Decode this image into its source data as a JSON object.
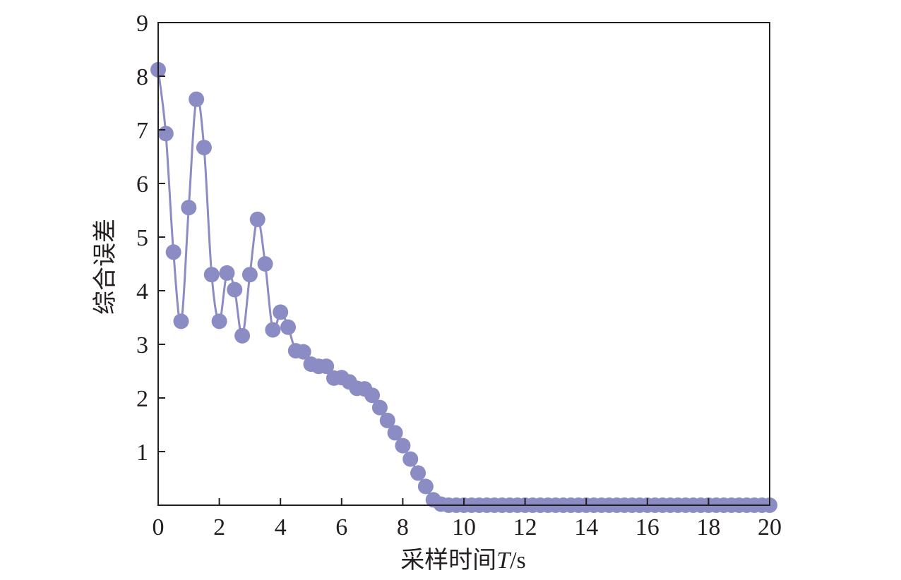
{
  "chart_data": {
    "type": "line",
    "title": "",
    "xlabel_text": "采样时间",
    "xlabel_var": "T",
    "xlabel_unit": "/s",
    "ylabel": "综合误差",
    "xlim": [
      0,
      20
    ],
    "ylim": [
      0,
      9
    ],
    "xticks": [
      0,
      2,
      4,
      6,
      8,
      10,
      12,
      14,
      16,
      18,
      20
    ],
    "yticks": [
      1,
      2,
      3,
      4,
      5,
      6,
      7,
      8,
      9
    ],
    "grid": false,
    "legend": "none",
    "colors": {
      "series": "#8c8cc4",
      "axis": "#231f20"
    },
    "series": [
      {
        "marker": "circle",
        "x": [
          0,
          0.25,
          0.5,
          0.75,
          1,
          1.25,
          1.5,
          1.75,
          2,
          2.25,
          2.5,
          2.75,
          3,
          3.25,
          3.5,
          3.75,
          4,
          4.25,
          4.5,
          4.75,
          5,
          5.25,
          5.5,
          5.75,
          6,
          6.25,
          6.5,
          6.75,
          7,
          7.25,
          7.5,
          7.75,
          8,
          8.25,
          8.5,
          8.75,
          9,
          9.25,
          9.5,
          9.75,
          10,
          10.25,
          10.5,
          10.75,
          11,
          11.25,
          11.5,
          11.75,
          12,
          12.25,
          12.5,
          12.75,
          13,
          13.25,
          13.5,
          13.75,
          14,
          14.25,
          14.5,
          14.75,
          15,
          15.25,
          15.5,
          15.75,
          16,
          16.25,
          16.5,
          16.75,
          17,
          17.25,
          17.5,
          17.75,
          18,
          18.25,
          18.5,
          18.75,
          19,
          19.25,
          19.5,
          19.75,
          20
        ],
        "y": [
          8.12,
          6.93,
          4.72,
          3.43,
          5.55,
          7.57,
          6.67,
          4.3,
          3.43,
          4.33,
          4.02,
          3.16,
          4.3,
          5.33,
          4.5,
          3.27,
          3.6,
          3.32,
          2.88,
          2.86,
          2.63,
          2.59,
          2.59,
          2.37,
          2.38,
          2.3,
          2.18,
          2.17,
          2.05,
          1.82,
          1.58,
          1.35,
          1.11,
          0.86,
          0.6,
          0.35,
          0.1,
          0.02,
          0,
          0,
          0,
          0,
          0,
          0,
          0,
          0,
          0,
          0,
          0,
          0,
          0,
          0,
          0,
          0,
          0,
          0,
          0,
          0,
          0,
          0,
          0,
          0,
          0,
          0,
          0,
          0,
          0,
          0,
          0,
          0,
          0,
          0,
          0,
          0,
          0,
          0,
          0,
          0,
          0,
          0,
          0
        ]
      }
    ]
  }
}
